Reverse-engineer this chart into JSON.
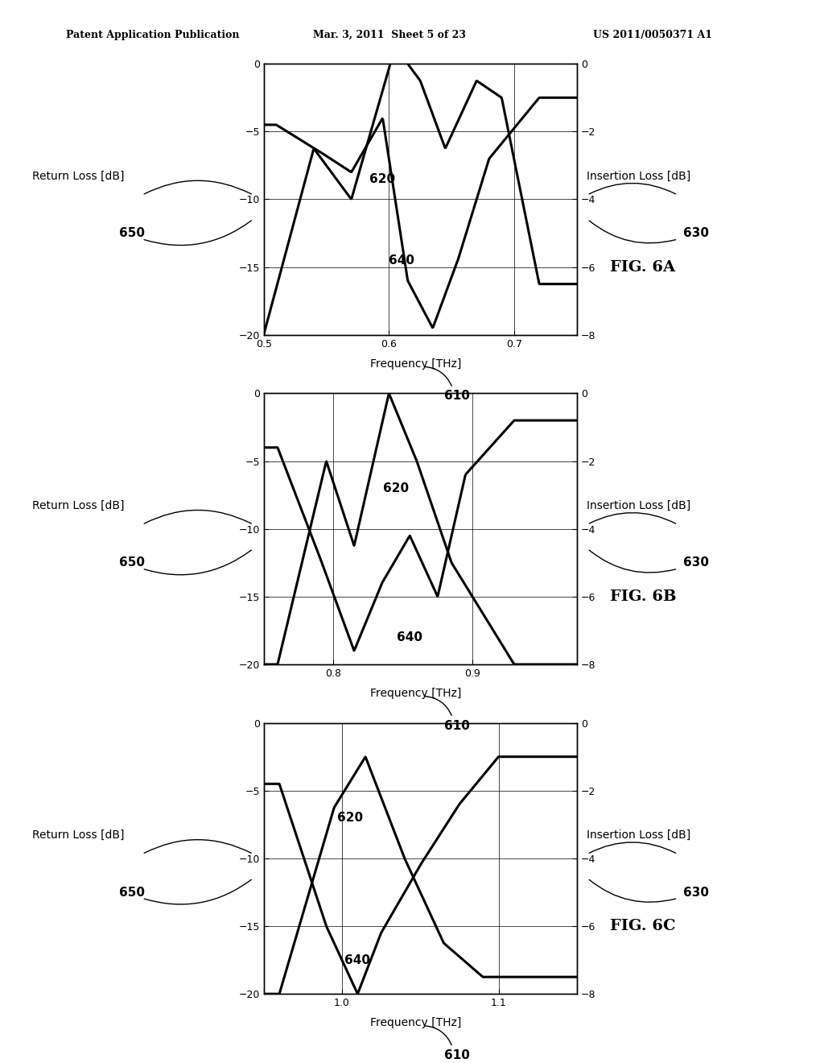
{
  "header_left": "Patent Application Publication",
  "header_mid": "Mar. 3, 2011  Sheet 5 of 23",
  "header_right": "US 2011/0050371 A1",
  "background_color": "#ffffff",
  "plots": [
    {
      "fig_label": "FIG. 6A",
      "xmin": 0.5,
      "xmax": 0.75,
      "xticks": [
        0.5,
        0.6,
        0.7
      ],
      "xlabel": "Frequency [THz]",
      "ylabel_left": "Return Loss [dB]",
      "ylabel_right": "Insertion Loss [dB]",
      "ylim_left": [
        -20,
        0
      ],
      "ylim_right": [
        -8,
        0
      ],
      "yticks_left": [
        0,
        -5,
        -10,
        -15,
        -20
      ],
      "yticks_right": [
        0,
        -2,
        -4,
        -6,
        -8
      ],
      "label_620": "620",
      "label_640": "640",
      "label_650": "650",
      "label_630": "630",
      "label_610": "610"
    },
    {
      "fig_label": "FIG. 6B",
      "xmin": 0.75,
      "xmax": 0.975,
      "xticks": [
        0.8,
        0.9
      ],
      "xlabel": "Frequency [THz]",
      "ylabel_left": "Return Loss [dB]",
      "ylabel_right": "Insertion Loss [dB]",
      "ylim_left": [
        -20,
        0
      ],
      "ylim_right": [
        -8,
        0
      ],
      "yticks_left": [
        0,
        -5,
        -10,
        -15,
        -20
      ],
      "yticks_right": [
        0,
        -2,
        -4,
        -6,
        -8
      ],
      "label_620": "620",
      "label_640": "640",
      "label_650": "650",
      "label_630": "630",
      "label_610": "610"
    },
    {
      "fig_label": "FIG. 6C",
      "xmin": 0.95,
      "xmax": 1.15,
      "xticks": [
        1.0,
        1.1
      ],
      "xlabel": "Frequency [THz]",
      "ylabel_left": "Return Loss [dB]",
      "ylabel_right": "Insertion Loss [dB]",
      "ylim_left": [
        -20,
        0
      ],
      "ylim_right": [
        -8,
        0
      ],
      "yticks_left": [
        0,
        -5,
        -10,
        -15,
        -20
      ],
      "yticks_right": [
        0,
        -2,
        -4,
        -6,
        -8
      ],
      "label_620": "620",
      "label_640": "640",
      "label_650": "650",
      "label_630": "630",
      "label_610": "610"
    }
  ]
}
